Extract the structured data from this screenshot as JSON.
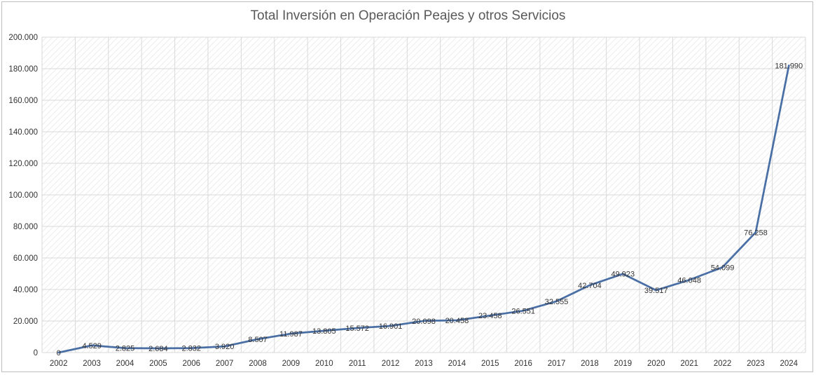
{
  "chart_data": {
    "type": "line",
    "title": "Total Inversión en Operación Peajes y otros Servicios",
    "xlabel": "",
    "ylabel": "",
    "ylim": [
      0,
      200000
    ],
    "yticks": [
      0,
      20000,
      40000,
      60000,
      80000,
      100000,
      120000,
      140000,
      160000,
      180000,
      200000
    ],
    "ytick_labels": [
      "0",
      "20.000",
      "40.000",
      "60.000",
      "80.000",
      "100.000",
      "120.000",
      "140.000",
      "160.000",
      "180.000",
      "200.000"
    ],
    "grid": true,
    "legend": "none",
    "categories": [
      "2002",
      "2003",
      "2004",
      "2005",
      "2006",
      "2007",
      "2008",
      "2009",
      "2010",
      "2011",
      "2012",
      "2013",
      "2014",
      "2015",
      "2016",
      "2017",
      "2018",
      "2019",
      "2020",
      "2021",
      "2022",
      "2023",
      "2024"
    ],
    "series": [
      {
        "values": [
          0,
          4529,
          2825,
          2684,
          2832,
          3920,
          8507,
          11987,
          13805,
          15572,
          16901,
          20098,
          20458,
          23458,
          26551,
          32555,
          42704,
          49923,
          39517,
          46048,
          54099,
          76258,
          181990
        ],
        "labels": [
          "0",
          "4.529",
          "2.825",
          "2.684",
          "2.832",
          "3.920",
          "8.507",
          "11.987",
          "13.805",
          "15.572",
          "16.901",
          "20.098",
          "20.458",
          "23.458",
          "26.551",
          "32.555",
          "42.704",
          "49.923",
          "39.517",
          "46.048",
          "54.099",
          "76.258",
          "181.990"
        ],
        "color": "#4a6fa5"
      }
    ],
    "colors": {
      "line": "#4a6fa5",
      "grid": "#d9d9d9",
      "text": "#333333",
      "title": "#595959"
    }
  }
}
